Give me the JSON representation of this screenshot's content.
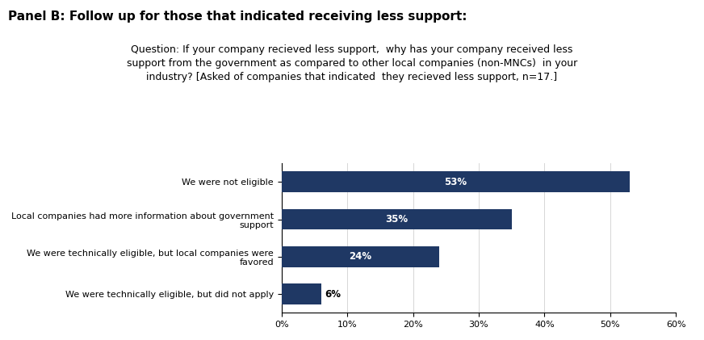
{
  "chart_data": {
    "type": "bar",
    "orientation": "horizontal",
    "title": "Panel B: Follow up for those that indicated receiving less support:",
    "subtitle": "Question: If your company recieved less support,  why has your company received less\nsupport from the government as compared to other local companies (non-MNCs)  in your\nindustry? [Asked of companies that indicated  they recieved less support, n=17.]",
    "categories": [
      "We were not eligible",
      "Local companies had more information about government\nsupport",
      "We were technically eligible, but local companies were\nfavored",
      "We were technically eligible, but did not apply"
    ],
    "values": [
      53,
      35,
      24,
      6
    ],
    "value_labels": [
      "53%",
      "35%",
      "24%",
      "6%"
    ],
    "data_labels": true,
    "color": "#1F3864",
    "xlim": [
      0,
      60
    ],
    "xticks": [
      {
        "value": 0,
        "label": "0%"
      },
      {
        "value": 10,
        "label": "10%"
      },
      {
        "value": 20,
        "label": "20%"
      },
      {
        "value": 30,
        "label": "30%"
      },
      {
        "value": 40,
        "label": "40%"
      },
      {
        "value": 50,
        "label": "50%"
      },
      {
        "value": 60,
        "label": "60%"
      }
    ],
    "grid": true
  }
}
